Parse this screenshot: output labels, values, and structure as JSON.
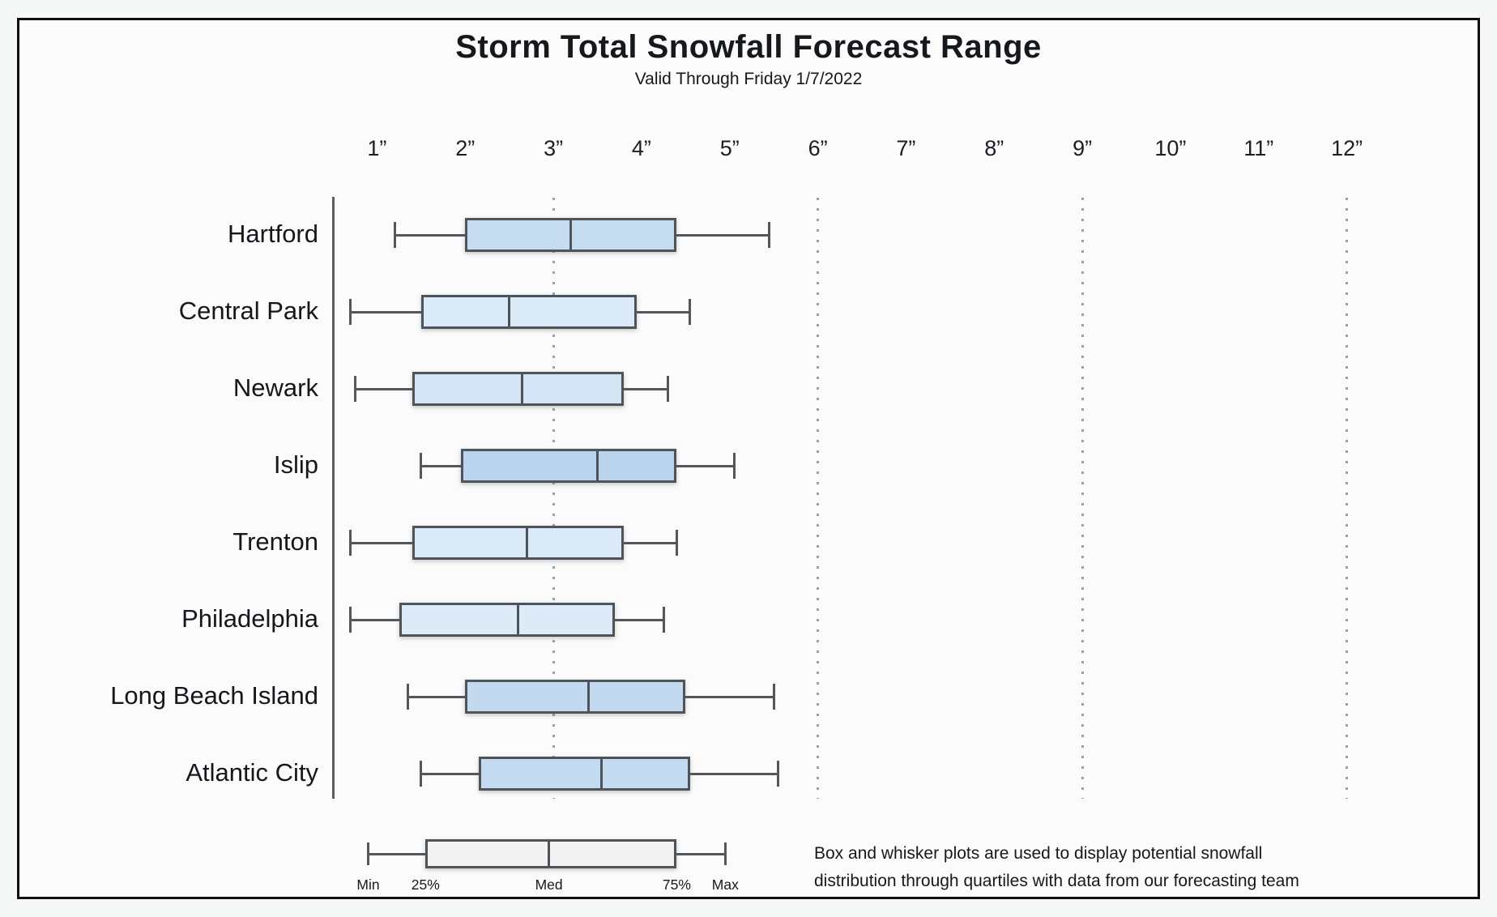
{
  "header": {
    "title": "Storm Total Snowfall Forecast Range",
    "subtitle": "Valid Through Friday 1/7/2022"
  },
  "chart_data": {
    "type": "boxplot",
    "orientation": "horizontal",
    "title": "Storm Total Snowfall Forecast Range",
    "subtitle": "Valid Through Friday 1/7/2022",
    "x_unit": "inches",
    "xlim": [
      0.5,
      12.5
    ],
    "grid": "dotted vertical at 3,6,9,12",
    "gridlines_at": [
      3,
      6,
      9,
      12
    ],
    "x_ticks": [
      {
        "value": 1,
        "label": "1”"
      },
      {
        "value": 2,
        "label": "2”"
      },
      {
        "value": 3,
        "label": "3”"
      },
      {
        "value": 4,
        "label": "4”"
      },
      {
        "value": 5,
        "label": "5”"
      },
      {
        "value": 6,
        "label": "6”"
      },
      {
        "value": 7,
        "label": "7”"
      },
      {
        "value": 8,
        "label": "8”"
      },
      {
        "value": 9,
        "label": "9”"
      },
      {
        "value": 10,
        "label": "10”"
      },
      {
        "value": 11,
        "label": "11”"
      },
      {
        "value": 12,
        "label": "12”"
      }
    ],
    "categories": [
      "Hartford",
      "Central Park",
      "Newark",
      "Islip",
      "Trenton",
      "Philadelphia",
      "Long Beach Island",
      "Atlantic City"
    ],
    "series": [
      {
        "name": "Hartford",
        "min": 1.2,
        "q1": 2.0,
        "median": 3.2,
        "q3": 4.4,
        "max": 5.45,
        "fill": "#c6dcf1"
      },
      {
        "name": "Central Park",
        "min": 0.7,
        "q1": 1.5,
        "median": 2.5,
        "q3": 3.95,
        "max": 4.55,
        "fill": "#dbeaf8"
      },
      {
        "name": "Newark",
        "min": 0.75,
        "q1": 1.4,
        "median": 2.65,
        "q3": 3.8,
        "max": 4.3,
        "fill": "#d3e5f5"
      },
      {
        "name": "Islip",
        "min": 1.5,
        "q1": 1.95,
        "median": 3.5,
        "q3": 4.4,
        "max": 5.05,
        "fill": "#b9d4ec"
      },
      {
        "name": "Trenton",
        "min": 0.7,
        "q1": 1.4,
        "median": 2.7,
        "q3": 3.8,
        "max": 4.4,
        "fill": "#dbeaf8"
      },
      {
        "name": "Philadelphia",
        "min": 0.7,
        "q1": 1.25,
        "median": 2.6,
        "q3": 3.7,
        "max": 4.25,
        "fill": "#ddebf8"
      },
      {
        "name": "Long Beach Island",
        "min": 1.35,
        "q1": 2.0,
        "median": 3.4,
        "q3": 4.5,
        "max": 5.5,
        "fill": "#c2d9ef"
      },
      {
        "name": "Atlantic City",
        "min": 1.5,
        "q1": 2.15,
        "median": 3.55,
        "q3": 4.55,
        "max": 5.55,
        "fill": "#c3daf0"
      }
    ]
  },
  "legend": {
    "values": {
      "min": 0.9,
      "q1": 1.55,
      "median": 2.95,
      "q3": 4.4,
      "max": 4.95
    },
    "labels": {
      "min": "Min",
      "q1": "25%",
      "median": "Med",
      "q3": "75%",
      "max": "Max"
    },
    "fill": "#f2f2f2"
  },
  "caption": {
    "line1": "Box and whisker plots are used to display potential snowfall",
    "line2": "distribution through quartiles with data from our forecasting team"
  },
  "colors": {
    "background_outer": "#f6f7f7",
    "background_inner": "#fbfbfb",
    "frame_border": "#101010",
    "box_stroke": "#4f545a",
    "whisker_stroke": "#53575c",
    "gridline": "#9aa0a4",
    "text": "#15181c"
  }
}
